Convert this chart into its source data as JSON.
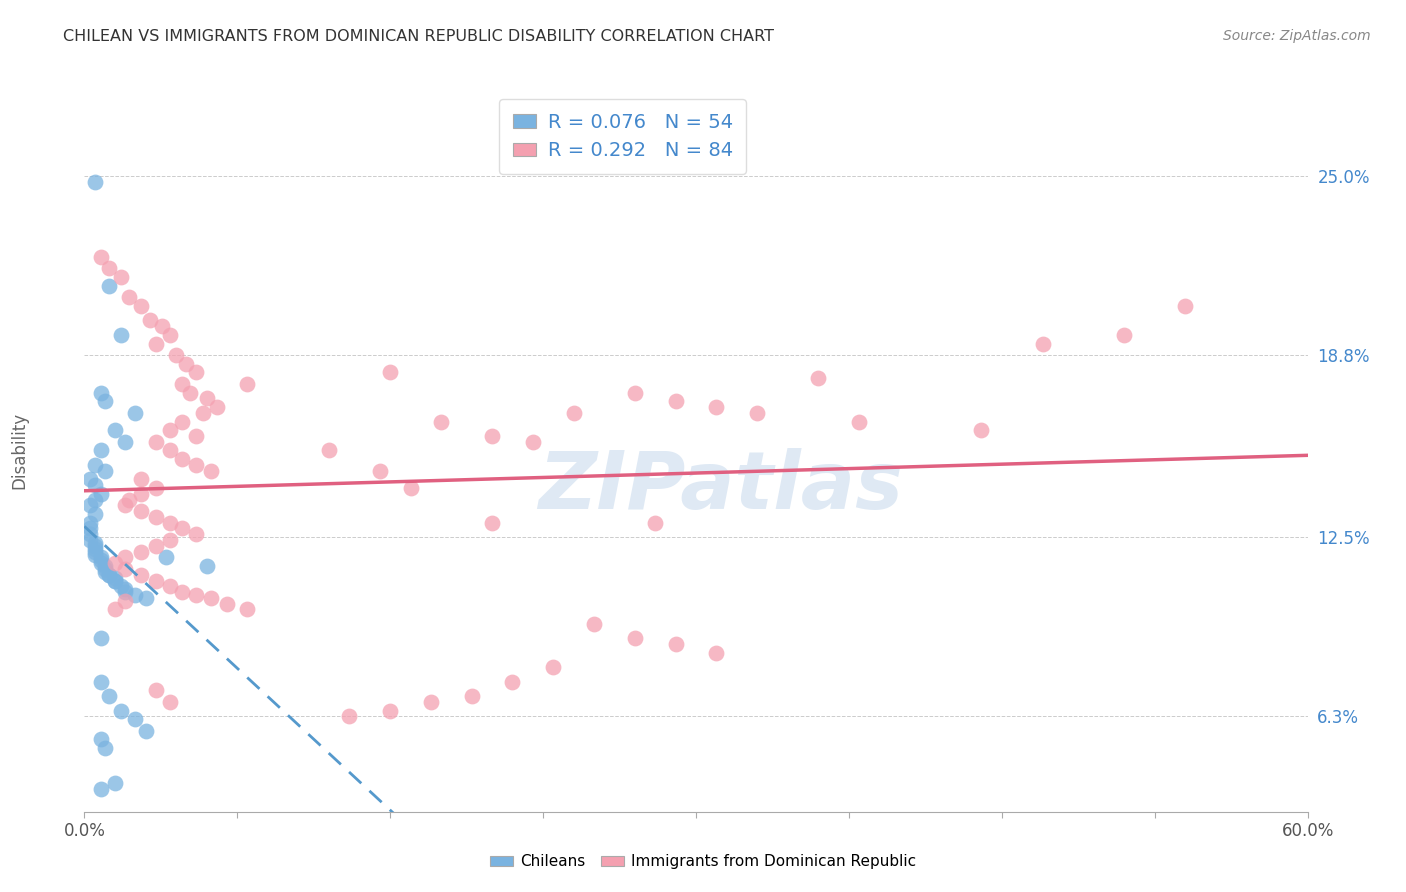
{
  "title": "CHILEAN VS IMMIGRANTS FROM DOMINICAN REPUBLIC DISABILITY CORRELATION CHART",
  "source": "Source: ZipAtlas.com",
  "xlabel": "",
  "ylabel": "Disability",
  "xlim": [
    0.0,
    0.6
  ],
  "ylim": [
    0.03,
    0.28
  ],
  "yticks": [
    0.063,
    0.125,
    0.188,
    0.25
  ],
  "ytick_labels": [
    "6.3%",
    "12.5%",
    "18.8%",
    "25.0%"
  ],
  "xticks_show": [
    0.0,
    0.6
  ],
  "xtick_labels_show": [
    "0.0%",
    "60.0%"
  ],
  "xticks_minor": [
    0.075,
    0.15,
    0.225,
    0.3,
    0.375,
    0.45,
    0.525
  ],
  "blue_R": 0.076,
  "blue_N": 54,
  "pink_R": 0.292,
  "pink_N": 84,
  "legend_label_blue": "Chileans",
  "legend_label_pink": "Immigrants from Dominican Republic",
  "watermark": "ZIPatlas",
  "title_color": "#333333",
  "source_color": "#888888",
  "blue_color": "#7ab3e0",
  "pink_color": "#f4a0b0",
  "blue_line_color": "#5599cc",
  "pink_line_color": "#e06080",
  "accent_color": "#4488cc",
  "blue_points": [
    [
      0.005,
      0.248
    ],
    [
      0.012,
      0.212
    ],
    [
      0.018,
      0.195
    ],
    [
      0.008,
      0.175
    ],
    [
      0.01,
      0.172
    ],
    [
      0.025,
      0.168
    ],
    [
      0.015,
      0.162
    ],
    [
      0.02,
      0.158
    ],
    [
      0.008,
      0.155
    ],
    [
      0.005,
      0.15
    ],
    [
      0.01,
      0.148
    ],
    [
      0.003,
      0.145
    ],
    [
      0.005,
      0.143
    ],
    [
      0.008,
      0.14
    ],
    [
      0.005,
      0.138
    ],
    [
      0.003,
      0.136
    ],
    [
      0.005,
      0.133
    ],
    [
      0.003,
      0.13
    ],
    [
      0.003,
      0.128
    ],
    [
      0.003,
      0.126
    ],
    [
      0.003,
      0.124
    ],
    [
      0.005,
      0.123
    ],
    [
      0.005,
      0.122
    ],
    [
      0.005,
      0.121
    ],
    [
      0.005,
      0.12
    ],
    [
      0.005,
      0.119
    ],
    [
      0.008,
      0.118
    ],
    [
      0.008,
      0.117
    ],
    [
      0.008,
      0.116
    ],
    [
      0.01,
      0.115
    ],
    [
      0.01,
      0.114
    ],
    [
      0.01,
      0.113
    ],
    [
      0.012,
      0.112
    ],
    [
      0.012,
      0.112
    ],
    [
      0.015,
      0.111
    ],
    [
      0.015,
      0.11
    ],
    [
      0.015,
      0.11
    ],
    [
      0.018,
      0.108
    ],
    [
      0.02,
      0.107
    ],
    [
      0.02,
      0.106
    ],
    [
      0.025,
      0.105
    ],
    [
      0.03,
      0.104
    ],
    [
      0.04,
      0.118
    ],
    [
      0.06,
      0.115
    ],
    [
      0.008,
      0.075
    ],
    [
      0.012,
      0.07
    ],
    [
      0.018,
      0.065
    ],
    [
      0.025,
      0.062
    ],
    [
      0.03,
      0.058
    ],
    [
      0.008,
      0.055
    ],
    [
      0.01,
      0.052
    ],
    [
      0.015,
      0.04
    ],
    [
      0.008,
      0.038
    ],
    [
      0.008,
      0.09
    ]
  ],
  "pink_points": [
    [
      0.008,
      0.222
    ],
    [
      0.012,
      0.218
    ],
    [
      0.018,
      0.215
    ],
    [
      0.022,
      0.208
    ],
    [
      0.028,
      0.205
    ],
    [
      0.032,
      0.2
    ],
    [
      0.038,
      0.198
    ],
    [
      0.042,
      0.195
    ],
    [
      0.035,
      0.192
    ],
    [
      0.045,
      0.188
    ],
    [
      0.05,
      0.185
    ],
    [
      0.055,
      0.182
    ],
    [
      0.048,
      0.178
    ],
    [
      0.052,
      0.175
    ],
    [
      0.06,
      0.173
    ],
    [
      0.065,
      0.17
    ],
    [
      0.058,
      0.168
    ],
    [
      0.048,
      0.165
    ],
    [
      0.042,
      0.162
    ],
    [
      0.055,
      0.16
    ],
    [
      0.035,
      0.158
    ],
    [
      0.042,
      0.155
    ],
    [
      0.048,
      0.152
    ],
    [
      0.055,
      0.15
    ],
    [
      0.062,
      0.148
    ],
    [
      0.028,
      0.145
    ],
    [
      0.035,
      0.142
    ],
    [
      0.028,
      0.14
    ],
    [
      0.022,
      0.138
    ],
    [
      0.02,
      0.136
    ],
    [
      0.028,
      0.134
    ],
    [
      0.035,
      0.132
    ],
    [
      0.042,
      0.13
    ],
    [
      0.048,
      0.128
    ],
    [
      0.055,
      0.126
    ],
    [
      0.042,
      0.124
    ],
    [
      0.035,
      0.122
    ],
    [
      0.028,
      0.12
    ],
    [
      0.02,
      0.118
    ],
    [
      0.015,
      0.116
    ],
    [
      0.02,
      0.114
    ],
    [
      0.028,
      0.112
    ],
    [
      0.035,
      0.11
    ],
    [
      0.042,
      0.108
    ],
    [
      0.048,
      0.106
    ],
    [
      0.055,
      0.105
    ],
    [
      0.062,
      0.104
    ],
    [
      0.07,
      0.102
    ],
    [
      0.08,
      0.1
    ],
    [
      0.12,
      0.155
    ],
    [
      0.145,
      0.148
    ],
    [
      0.16,
      0.142
    ],
    [
      0.175,
      0.165
    ],
    [
      0.2,
      0.16
    ],
    [
      0.22,
      0.158
    ],
    [
      0.24,
      0.168
    ],
    [
      0.27,
      0.175
    ],
    [
      0.29,
      0.172
    ],
    [
      0.31,
      0.17
    ],
    [
      0.33,
      0.168
    ],
    [
      0.36,
      0.18
    ],
    [
      0.38,
      0.165
    ],
    [
      0.25,
      0.095
    ],
    [
      0.27,
      0.09
    ],
    [
      0.29,
      0.088
    ],
    [
      0.31,
      0.085
    ],
    [
      0.23,
      0.08
    ],
    [
      0.21,
      0.075
    ],
    [
      0.19,
      0.07
    ],
    [
      0.17,
      0.068
    ],
    [
      0.15,
      0.065
    ],
    [
      0.13,
      0.063
    ],
    [
      0.035,
      0.072
    ],
    [
      0.042,
      0.068
    ],
    [
      0.02,
      0.103
    ],
    [
      0.015,
      0.1
    ],
    [
      0.54,
      0.205
    ],
    [
      0.51,
      0.195
    ],
    [
      0.47,
      0.192
    ],
    [
      0.44,
      0.162
    ],
    [
      0.28,
      0.13
    ],
    [
      0.2,
      0.13
    ],
    [
      0.15,
      0.182
    ],
    [
      0.08,
      0.178
    ]
  ]
}
